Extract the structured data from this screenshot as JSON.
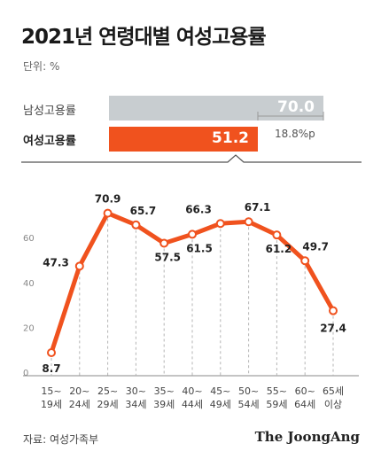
{
  "header": {
    "title": "2021년 연령대별 여성고용률",
    "unit": "단위: %"
  },
  "summary": {
    "male_label": "남성고용률",
    "male_value": 70.0,
    "male_value_text": "70.0",
    "female_label": "여성고용률",
    "female_value": 51.2,
    "female_value_text": "51.2",
    "gap_text": "18.8%p"
  },
  "colors": {
    "accent": "#f0521e",
    "male_bar": "#c8cdd0"
  },
  "chart_data": {
    "type": "line",
    "title": "",
    "xlabel": "",
    "ylabel": "",
    "ylim": [
      0,
      80
    ],
    "yticks": [
      0,
      20,
      40,
      60
    ],
    "grid": false,
    "categories": [
      [
        "15~",
        "19세"
      ],
      [
        "20~",
        "24세"
      ],
      [
        "25~",
        "29세"
      ],
      [
        "30~",
        "34세"
      ],
      [
        "35~",
        "39세"
      ],
      [
        "40~",
        "44세"
      ],
      [
        "45~",
        "49세"
      ],
      [
        "50~",
        "54세"
      ],
      [
        "55~",
        "59세"
      ],
      [
        "60~",
        "64세"
      ],
      [
        "65세",
        "이상"
      ]
    ],
    "values": [
      8.7,
      47.3,
      70.9,
      65.7,
      57.5,
      61.5,
      66.3,
      67.1,
      61.2,
      49.7,
      27.4
    ],
    "value_labels": [
      "8.7",
      "47.3",
      "70.9",
      "65.7",
      "57.5",
      "61.5",
      "66.3",
      "67.1",
      "61.2",
      "49.7",
      "27.4"
    ]
  },
  "footer": {
    "source": "자료: 여성가족부",
    "logo": "The JoongAng"
  }
}
